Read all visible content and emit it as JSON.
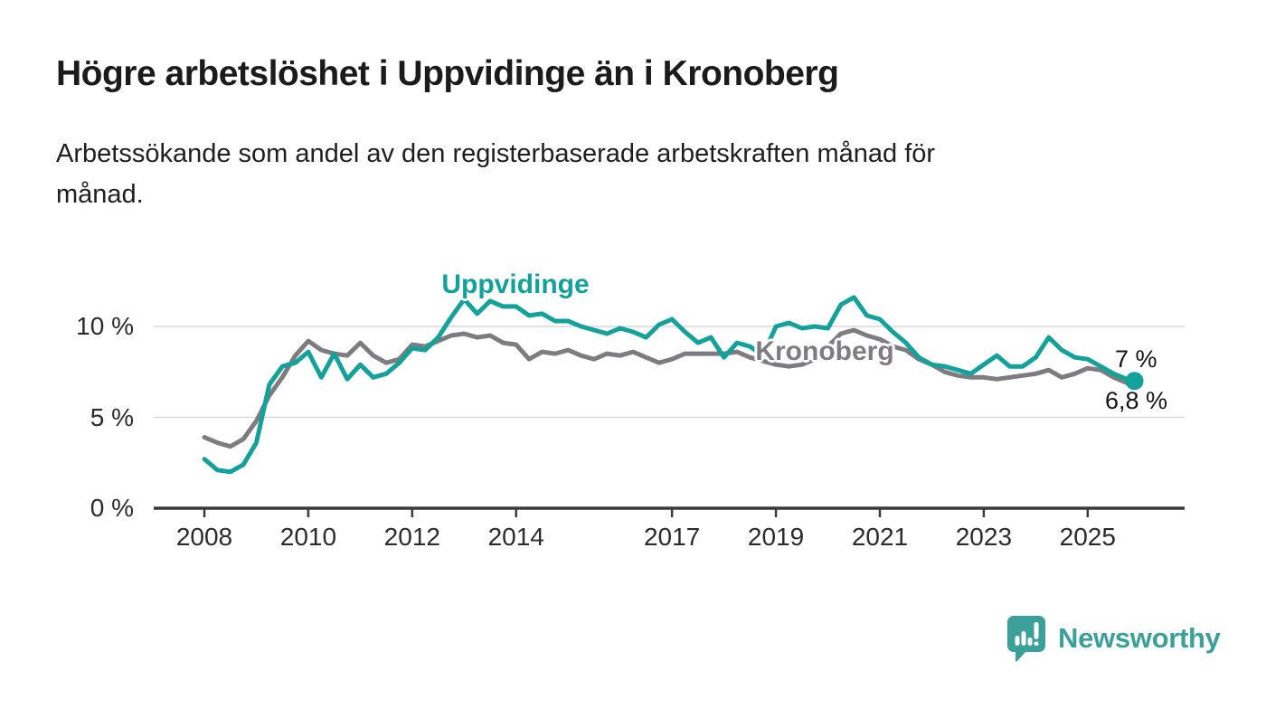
{
  "header": {
    "title": "Högre arbetslöshet i Uppvidinge än i Kronoberg",
    "subtitle": "Arbetssökande som andel av den registerbaserade arbetskraften månad för\nmånad."
  },
  "chart_data": {
    "type": "line",
    "title": "Högre arbetslöshet i Uppvidinge än i Kronoberg",
    "xlabel": "",
    "ylabel": "",
    "grid": "horizontal-only",
    "legend_position": "inline-on-lines",
    "xlim": [
      2007.0,
      2026.9
    ],
    "ylim": [
      0,
      12.2
    ],
    "x_ticks": [
      2008,
      2010,
      2012,
      2014,
      2017,
      2019,
      2021,
      2023,
      2025
    ],
    "y_ticks": [
      {
        "value": 0,
        "label": "0 %"
      },
      {
        "value": 5,
        "label": "5 %"
      },
      {
        "value": 10,
        "label": "10 %"
      }
    ],
    "x": [
      2008.0,
      2008.25,
      2008.5,
      2008.75,
      2009.0,
      2009.25,
      2009.5,
      2009.75,
      2010.0,
      2010.25,
      2010.5,
      2010.75,
      2011.0,
      2011.25,
      2011.5,
      2011.75,
      2012.0,
      2012.25,
      2012.5,
      2012.75,
      2013.0,
      2013.25,
      2013.5,
      2013.75,
      2014.0,
      2014.25,
      2014.5,
      2014.75,
      2015.0,
      2015.25,
      2015.5,
      2015.75,
      2016.0,
      2016.25,
      2016.5,
      2016.75,
      2017.0,
      2017.25,
      2017.5,
      2017.75,
      2018.0,
      2018.25,
      2018.5,
      2018.75,
      2019.0,
      2019.25,
      2019.5,
      2019.75,
      2020.0,
      2020.25,
      2020.5,
      2020.75,
      2021.0,
      2021.25,
      2021.5,
      2021.75,
      2022.0,
      2022.25,
      2022.5,
      2022.75,
      2023.0,
      2023.25,
      2023.5,
      2023.75,
      2024.0,
      2024.25,
      2024.5,
      2024.75,
      2025.0,
      2025.25,
      2025.5,
      2025.75,
      2025.9
    ],
    "series": [
      {
        "name": "Uppvidinge",
        "color": "#12a19b",
        "end_label": "7 %",
        "latest_value_pct": 7.0,
        "values": [
          2.7,
          2.1,
          2.0,
          2.4,
          3.6,
          6.8,
          7.8,
          8.0,
          8.6,
          7.2,
          8.5,
          7.1,
          7.9,
          7.2,
          7.4,
          8.0,
          8.8,
          8.7,
          9.4,
          10.5,
          11.5,
          10.7,
          11.4,
          11.1,
          11.1,
          10.6,
          10.7,
          10.3,
          10.3,
          10.0,
          9.8,
          9.6,
          9.9,
          9.7,
          9.4,
          10.1,
          10.4,
          9.7,
          9.1,
          9.4,
          8.3,
          9.1,
          8.9,
          8.4,
          10.0,
          10.2,
          9.9,
          10.0,
          9.9,
          11.2,
          11.6,
          10.6,
          10.4,
          9.7,
          9.1,
          8.3,
          7.9,
          7.8,
          7.6,
          7.4,
          7.9,
          8.4,
          7.8,
          7.8,
          8.3,
          9.4,
          8.7,
          8.3,
          8.2,
          7.8,
          7.4,
          7.1,
          7.0
        ]
      },
      {
        "name": "Kronoberg",
        "color": "#7e7c80",
        "end_label": "6,8 %",
        "latest_value_pct": 6.8,
        "values": [
          3.9,
          3.6,
          3.4,
          3.8,
          4.8,
          6.2,
          7.2,
          8.4,
          9.2,
          8.7,
          8.5,
          8.4,
          9.1,
          8.4,
          8.0,
          8.2,
          9.0,
          8.9,
          9.2,
          9.5,
          9.6,
          9.4,
          9.5,
          9.1,
          9.0,
          8.2,
          8.6,
          8.5,
          8.7,
          8.4,
          8.2,
          8.5,
          8.4,
          8.6,
          8.3,
          8.0,
          8.2,
          8.5,
          8.5,
          8.5,
          8.5,
          8.6,
          8.3,
          8.1,
          7.9,
          7.8,
          7.9,
          8.2,
          8.9,
          9.6,
          9.8,
          9.5,
          9.3,
          8.9,
          8.7,
          8.2,
          7.9,
          7.5,
          7.3,
          7.2,
          7.2,
          7.1,
          7.2,
          7.3,
          7.4,
          7.6,
          7.2,
          7.4,
          7.7,
          7.6,
          7.2,
          6.9,
          6.8
        ]
      }
    ]
  },
  "colors": {
    "background": "#ffffff",
    "axis": "#3a3a3a",
    "grid": "#d9d9d9",
    "tick_text": "#2b2b2b",
    "uppvidinge": "#12a19b",
    "kronoberg": "#7e7c80",
    "brand": "#3aa099"
  },
  "footer": {
    "brand": "Newsworthy",
    "logo_icon": "bar-chart-speech-bubble-icon"
  }
}
